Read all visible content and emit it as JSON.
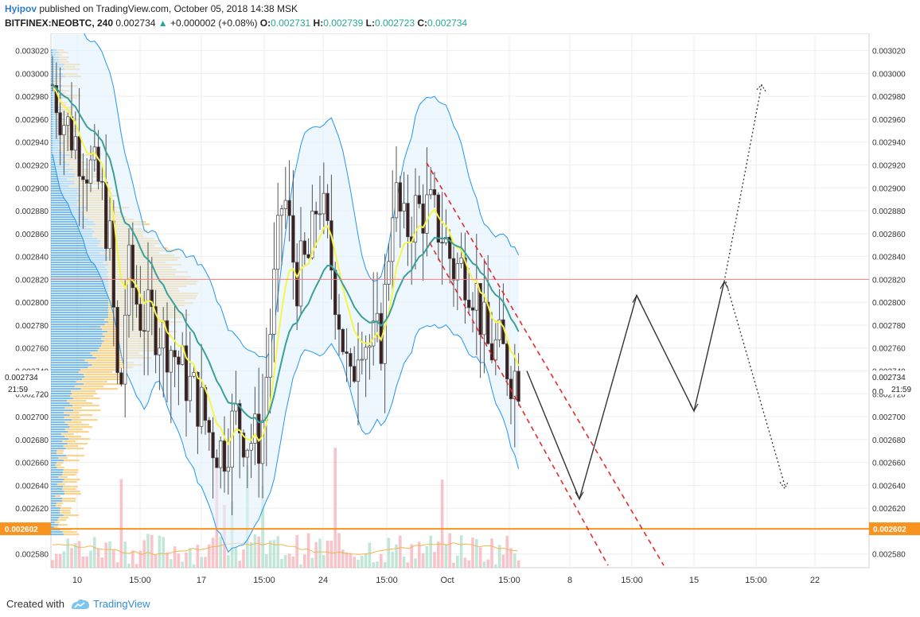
{
  "header": {
    "author": "Hyipov",
    "published_text": "published on TradingView.com, October 05, 2018 14:38 MSK",
    "symbol": "BITFINEX:NEOBTC, 240",
    "last": "0.002734",
    "arrow": "▲",
    "change": "+0.000002 (+0.08%)",
    "o_label": "O:",
    "o_value": "0.002731",
    "h_label": "H:",
    "h_value": "0.002739",
    "l_label": "L:",
    "l_value": "0.002723",
    "c_label": "C:",
    "c_value": "0.002734"
  },
  "footer": {
    "created_with": "Created with",
    "brand": "TradingView"
  },
  "colors": {
    "up": "#26a69a",
    "bb_line": "#2196f3",
    "bb_fill": "#e3f2fd",
    "ema_yellow": "#f5f54a",
    "ema_teal": "#3aa09a",
    "support_line": "#f7931e",
    "resistance_line": "#f08080",
    "channel": "#e32b2b",
    "projection": "#333333"
  },
  "chart_data": {
    "type": "candlestick",
    "title": "",
    "ylim": [
      0.002568,
      0.003035
    ],
    "y_ticks": [
      "0.003020",
      "0.003000",
      "0.002980",
      "0.002960",
      "0.002940",
      "0.002920",
      "0.002900",
      "0.002880",
      "0.002860",
      "0.002840",
      "0.002820",
      "0.002800",
      "0.002780",
      "0.002760",
      "0.002740",
      "0.002720",
      "0.002700",
      "0.002680",
      "0.002660",
      "0.002640",
      "0.002620",
      "0.002580"
    ],
    "x_ticks": [
      "10",
      "15:00",
      "17",
      "15:00",
      "24",
      "15:00",
      "Oct",
      "15:00",
      "8",
      "15:00",
      "15",
      "15:00",
      "22"
    ],
    "last_price_label": "0.002734",
    "countdown_label": "21:59",
    "right_small_label": "0.0",
    "support_price_label": "0.002602",
    "left_overlap_label": "720",
    "horizontal_levels": [
      {
        "name": "support",
        "value": 0.002602
      },
      {
        "name": "resistance",
        "value": 0.00282
      }
    ],
    "projection_path_values": [
      0.00274,
      0.002628,
      0.002806,
      0.002705,
      0.002818,
      0.00264
    ],
    "dotted_path_values": [
      0.002818,
      0.00299,
      0.002818,
      0.00264
    ],
    "candles_approx": {
      "start": 0.00299,
      "lows_region": [
        0.00263,
        0.00266
      ],
      "highs_region": [
        0.00298,
        0.00302
      ],
      "last": 0.002734
    }
  }
}
